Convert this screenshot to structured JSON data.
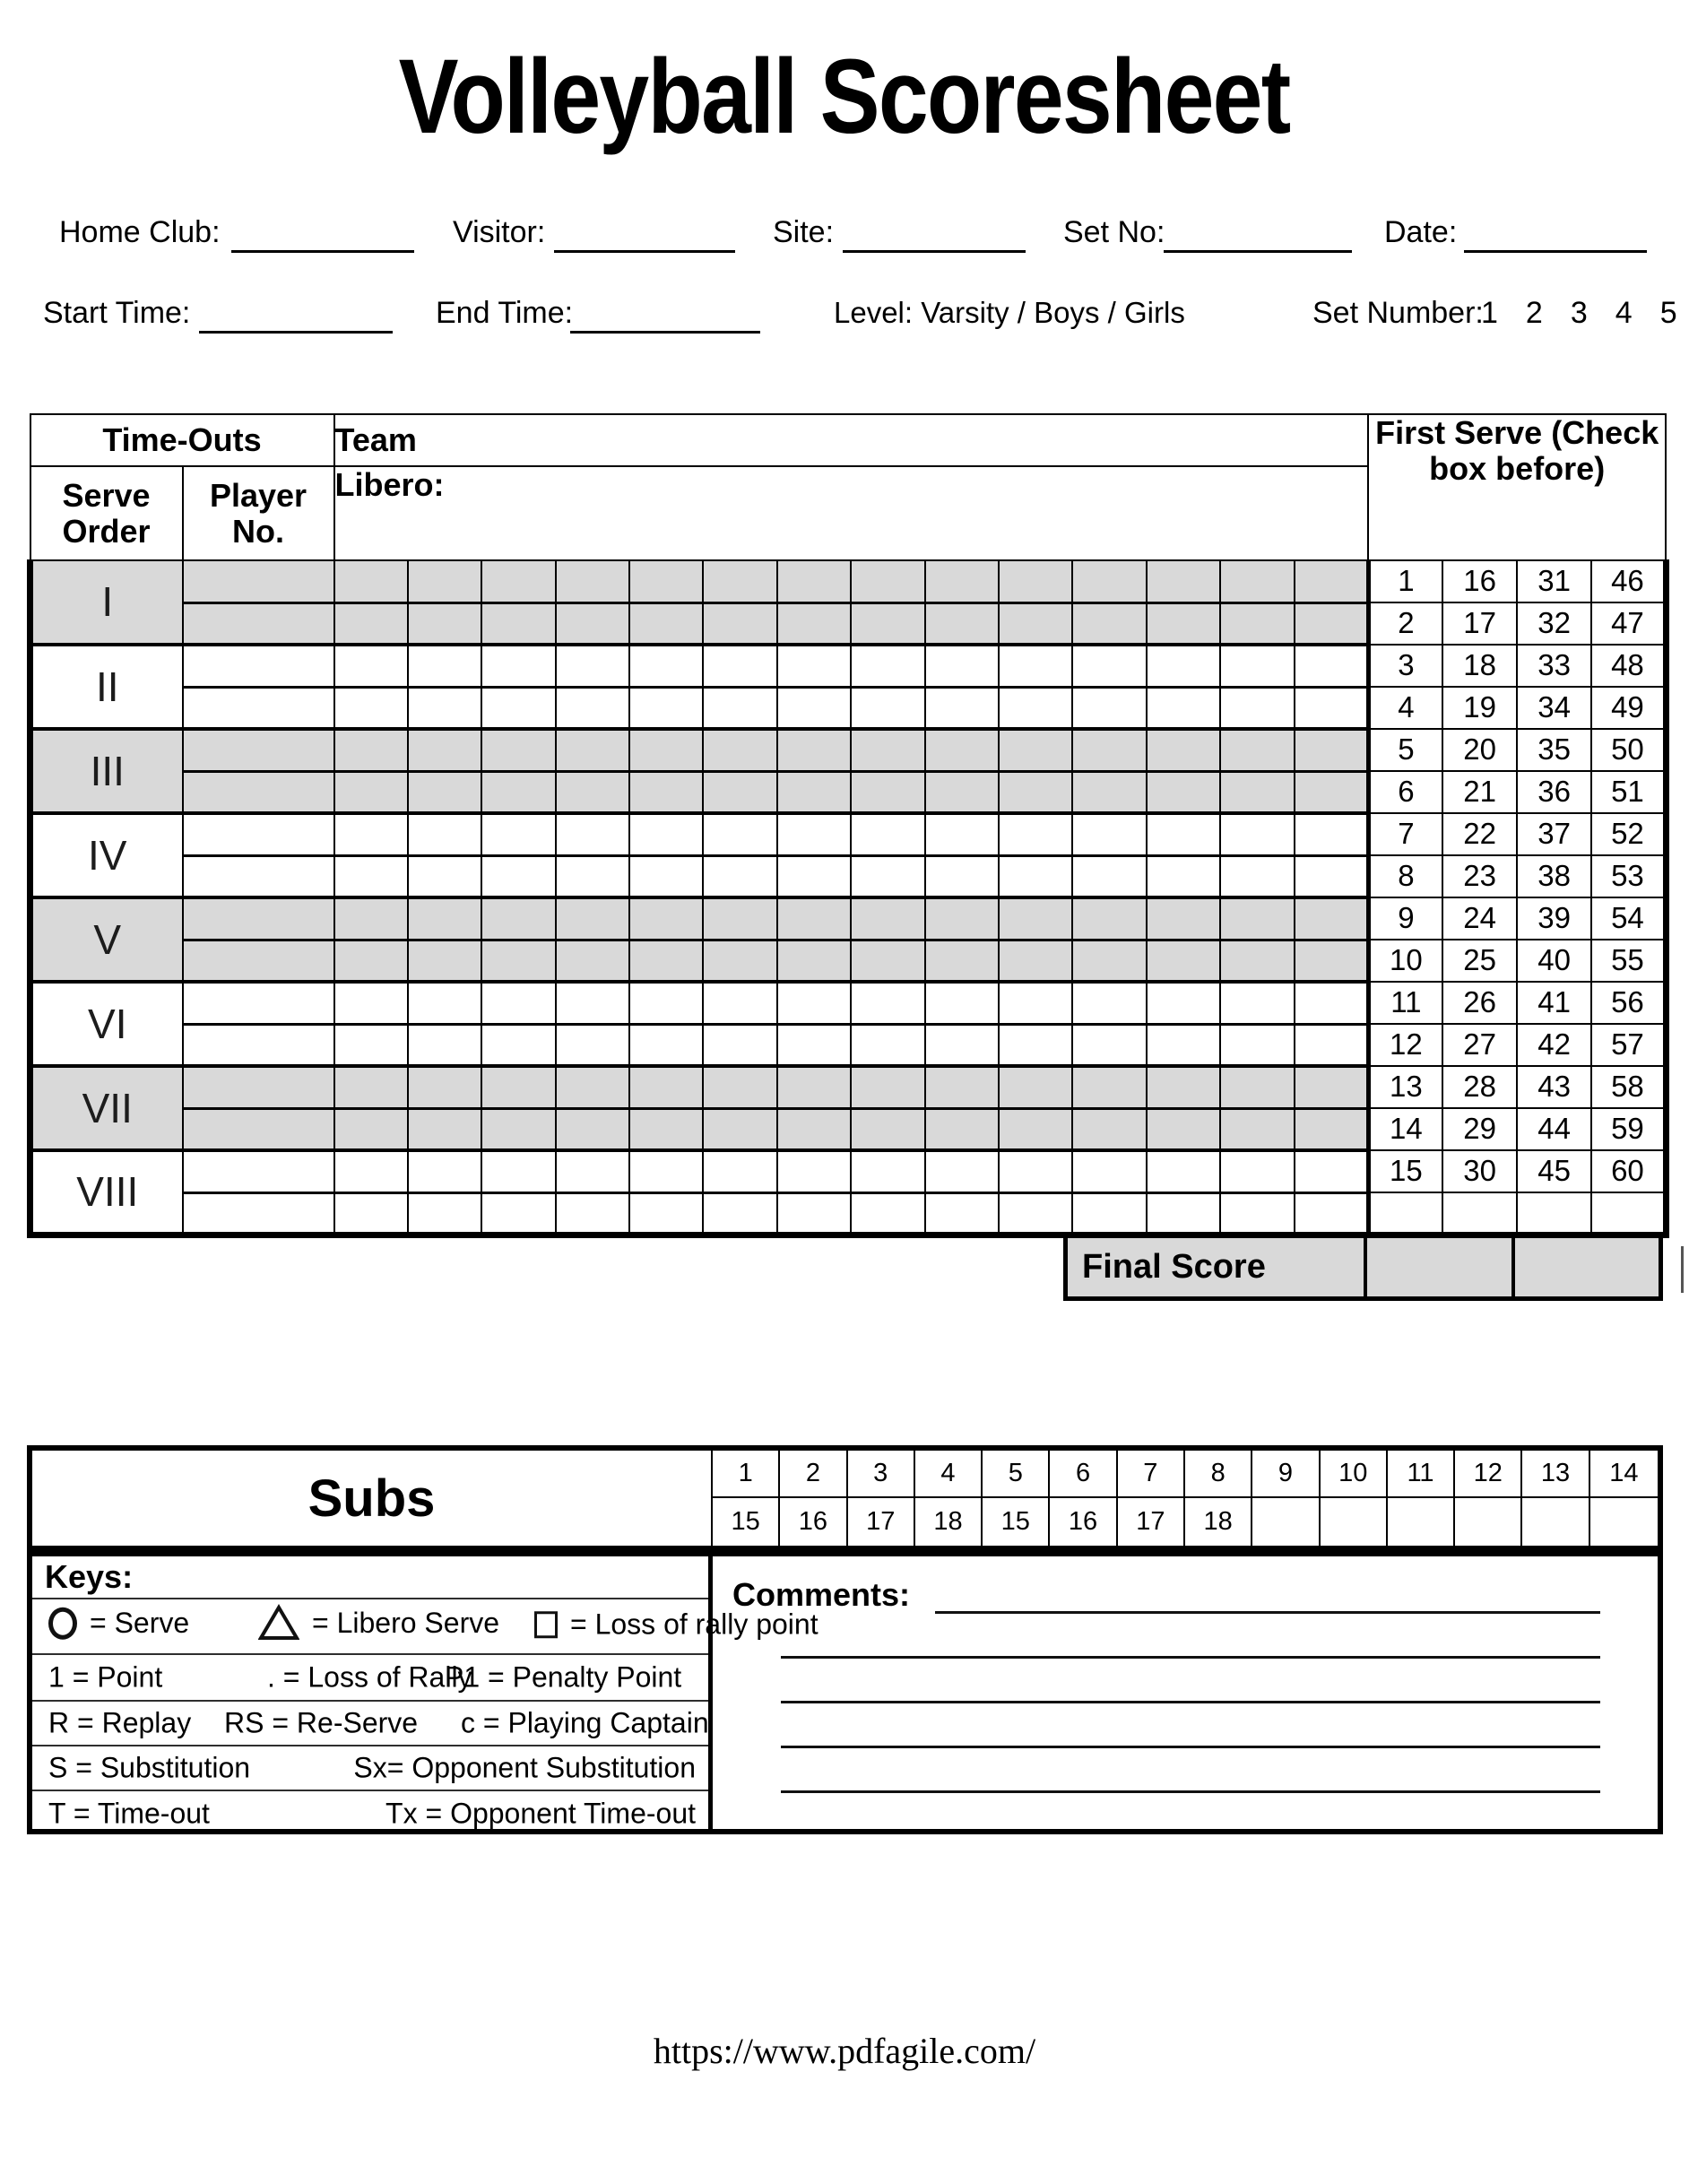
{
  "title": "Volleyball Scoresheet",
  "form": {
    "home_club": {
      "label": "Home Club:",
      "value": ""
    },
    "visitor": {
      "label": "Visitor:",
      "value": ""
    },
    "site": {
      "label": "Site:",
      "value": ""
    },
    "set_no": {
      "label": "Set No:",
      "value": ""
    },
    "date": {
      "label": "Date:",
      "value": ""
    },
    "start_time": {
      "label": "Start Time:",
      "value": ""
    },
    "end_time": {
      "label": "End Time:",
      "value": ""
    },
    "level_text": "Level: Varsity / Boys / Girls",
    "set_number_label": "Set Number:",
    "set_number_options": [
      "1",
      "2",
      "3",
      "4",
      "5"
    ]
  },
  "scoresheet": {
    "headers": {
      "timeouts": "Time-Outs",
      "team": "Team",
      "serve_order": "Serve Order",
      "player_no": "Player No.",
      "libero": "Libero:",
      "first_serve": "First Serve (Check box before)"
    },
    "serve_orders": [
      "I",
      "II",
      "III",
      "IV",
      "V",
      "VI",
      "VII",
      "VIII"
    ],
    "grid_columns": 14,
    "first_serve_rows": [
      [
        1,
        16,
        31,
        46
      ],
      [
        2,
        17,
        32,
        47
      ],
      [
        3,
        18,
        33,
        48
      ],
      [
        4,
        19,
        34,
        49
      ],
      [
        5,
        20,
        35,
        50
      ],
      [
        6,
        21,
        36,
        51
      ],
      [
        7,
        22,
        37,
        52
      ],
      [
        8,
        23,
        38,
        53
      ],
      [
        9,
        24,
        39,
        54
      ],
      [
        10,
        25,
        40,
        55
      ],
      [
        11,
        26,
        41,
        56
      ],
      [
        12,
        27,
        42,
        57
      ],
      [
        13,
        28,
        43,
        58
      ],
      [
        14,
        29,
        44,
        59
      ],
      [
        15,
        30,
        45,
        60
      ]
    ],
    "final_score_label": "Final Score"
  },
  "subs": {
    "label": "Subs",
    "row1": [
      "1",
      "2",
      "3",
      "4",
      "5",
      "6",
      "7",
      "8",
      "9",
      "10",
      "11",
      "12",
      "13",
      "14"
    ],
    "row2": [
      "15",
      "16",
      "17",
      "18",
      "15",
      "16",
      "17",
      "18",
      "",
      "",
      "",
      "",
      "",
      ""
    ]
  },
  "keys": {
    "title": "Keys:",
    "symbols": [
      {
        "icon": "circle",
        "label": "= Serve"
      },
      {
        "icon": "triangle",
        "label": "= Libero Serve"
      },
      {
        "icon": "square",
        "label": "=  Loss of rally point"
      }
    ],
    "rows": [
      [
        "1 = Point",
        ". = Loss of Rally",
        "P1 = Penalty Point"
      ],
      [
        "R = Replay",
        "RS = Re-Serve",
        "c = Playing Captain"
      ],
      [
        "S = Substitution",
        "Sx= Opponent Substitution"
      ],
      [
        "T = Time-out",
        "Tx = Opponent Time-out"
      ]
    ]
  },
  "comments": {
    "label": "Comments:",
    "blank_lines": 5
  },
  "footer": {
    "url": "https://www.pdfagile.com/"
  },
  "colors": {
    "border": "#000000",
    "shaded": "#d9d9d9"
  }
}
